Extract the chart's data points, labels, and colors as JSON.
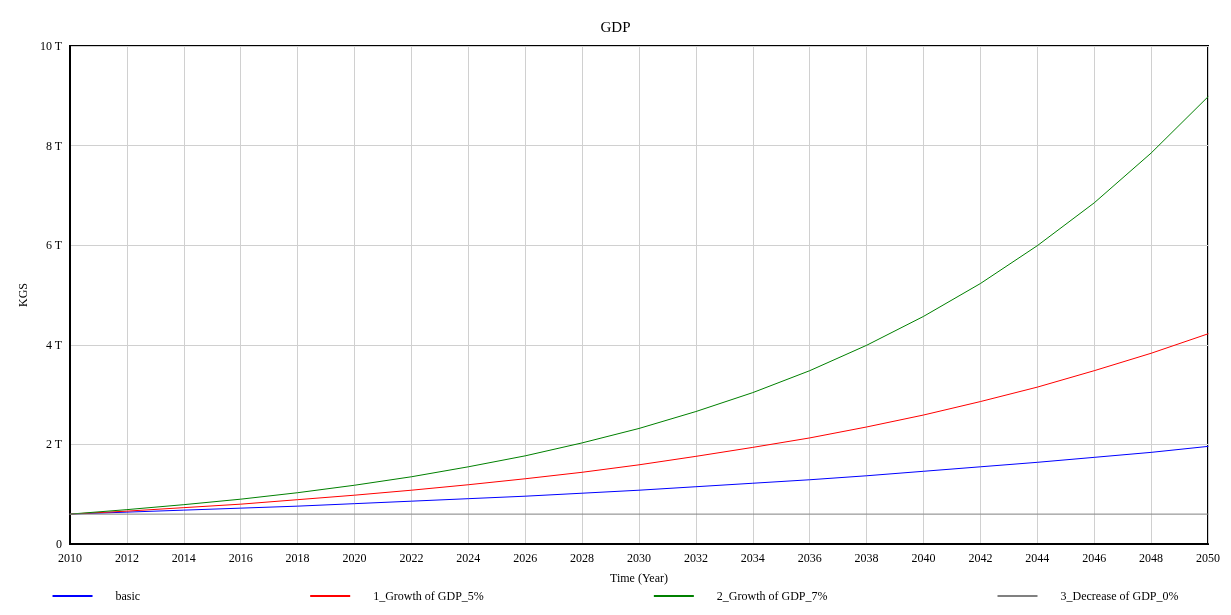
{
  "chart_data": {
    "type": "line",
    "title": "GDP",
    "xlabel": "Time (Year)",
    "ylabel": "KGS",
    "x": [
      2010,
      2012,
      2014,
      2016,
      2018,
      2020,
      2022,
      2024,
      2026,
      2028,
      2030,
      2032,
      2034,
      2036,
      2038,
      2040,
      2042,
      2044,
      2046,
      2048,
      2050
    ],
    "series": [
      {
        "name": "basic",
        "color": "#0000ff",
        "values": [
          0.6,
          0.64,
          0.68,
          0.72,
          0.76,
          0.81,
          0.86,
          0.91,
          0.96,
          1.02,
          1.08,
          1.15,
          1.22,
          1.29,
          1.37,
          1.46,
          1.55,
          1.64,
          1.74,
          1.84,
          1.96
        ]
      },
      {
        "name": "1_Growth of GDP_5%",
        "color": "#ff0000",
        "values": [
          0.6,
          0.66,
          0.73,
          0.8,
          0.89,
          0.98,
          1.08,
          1.19,
          1.31,
          1.44,
          1.59,
          1.76,
          1.94,
          2.13,
          2.35,
          2.59,
          2.86,
          3.15,
          3.48,
          3.83,
          4.22
        ]
      },
      {
        "name": "2_Growth of GDP_7%",
        "color": "#008000",
        "values": [
          0.6,
          0.69,
          0.79,
          0.9,
          1.03,
          1.18,
          1.35,
          1.55,
          1.77,
          2.03,
          2.32,
          2.66,
          3.04,
          3.48,
          3.99,
          4.57,
          5.23,
          5.99,
          6.85,
          7.85,
          8.98
        ]
      },
      {
        "name": "3_Decrease of GDP_0%",
        "color": "#808080",
        "values": [
          0.6,
          0.6,
          0.6,
          0.6,
          0.6,
          0.6,
          0.6,
          0.6,
          0.6,
          0.6,
          0.6,
          0.6,
          0.6,
          0.6,
          0.6,
          0.6,
          0.6,
          0.6,
          0.6,
          0.6,
          0.6
        ]
      }
    ],
    "xlim": [
      2010,
      2050
    ],
    "xticks": [
      2010,
      2012,
      2014,
      2016,
      2018,
      2020,
      2022,
      2024,
      2026,
      2028,
      2030,
      2032,
      2034,
      2036,
      2038,
      2040,
      2042,
      2044,
      2046,
      2048,
      2050
    ],
    "ylim": [
      0,
      10
    ],
    "yticks": [
      0,
      {
        "value": 2,
        "label": "2 T"
      },
      {
        "value": 4,
        "label": "4 T"
      },
      {
        "value": 6,
        "label": "6 T"
      },
      {
        "value": 8,
        "label": "8 T"
      },
      {
        "value": 10,
        "label": "10 T"
      }
    ],
    "grid": true,
    "legend": "bottom",
    "marker": "none",
    "line_style": "solid"
  }
}
